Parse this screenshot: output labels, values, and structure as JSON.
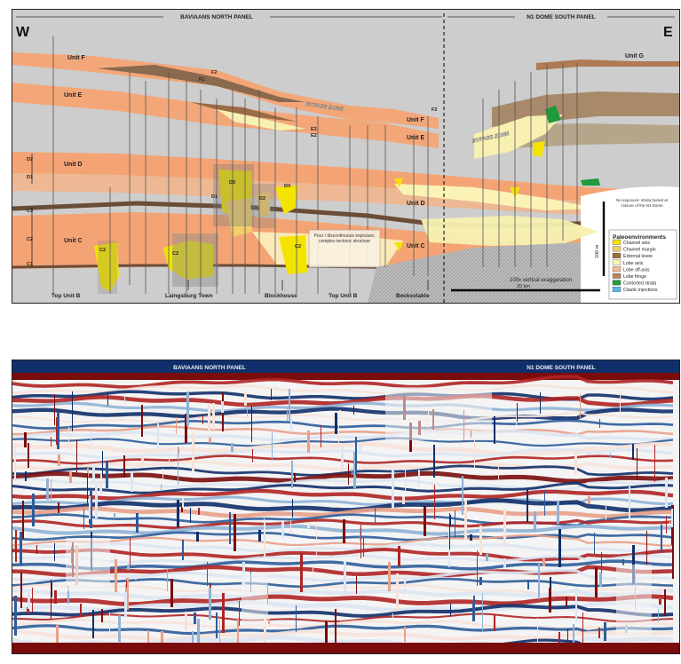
{
  "top_panel": {
    "panel_left_label": "BAVIAANS NORTH PANEL",
    "panel_right_label": "N1 DOME SOUTH PANEL",
    "west": "W",
    "east": "E",
    "units": {
      "unit_f_left": "Unit F",
      "unit_e_left": "Unit E",
      "unit_d_left": "Unit D",
      "unit_c_left": "Unit C",
      "unit_g": "Unit G",
      "unit_f_right": "Unit F",
      "unit_e_right": "Unit E",
      "unit_d_right": "Unit D",
      "unit_c_right": "Unit C"
    },
    "subunits": {
      "d2": "D2",
      "d1": "D1",
      "c3": "C3",
      "c2": "C2",
      "c1": "C1",
      "f2": "F2",
      "f1": "F1",
      "e3": "E3",
      "e2": "E2",
      "f2_right": "F2",
      "c2_body1": "C2",
      "c2_body2": "C2",
      "d1_body": "D1",
      "d3_body": "D3",
      "d2_body": "D2",
      "d3_body2": "D3",
      "c2_body3": "C2"
    },
    "bypass_left": "BYPASS ZONE",
    "bypass_right": "BYPASS ZONE",
    "poor_exposure_note": "Poor / discontinuous exposure; complex tectonic structure",
    "no_exposure_note": "No exposure: strata buried at closure of the N1 Dome",
    "exaggeration": "100x vertical exaggeration",
    "scale_horizontal": "20 km",
    "scale_vertical": "100 m",
    "bottom_labels": [
      "Top Unit B",
      "Laingsburg Town",
      "Blockhouse",
      "Top Unit B",
      "Becksvlakte"
    ],
    "legend": {
      "title": "Paleoenvironments",
      "items": [
        {
          "label": "Channel axis",
          "color": "#f3e400"
        },
        {
          "label": "Channel margin",
          "color": "#f2cf6a"
        },
        {
          "label": "External levee",
          "color": "#a06a3c"
        },
        {
          "label": "Lobe axis",
          "color": "#fbf3b6"
        },
        {
          "label": "Lobe off-axis",
          "color": "#f6ba8c"
        },
        {
          "label": "Lobe fringe",
          "color": "#b5845f"
        },
        {
          "label": "Contorted strata",
          "color": "#1f9a3c"
        },
        {
          "label": "Clastic injections",
          "color": "#5bb6e6"
        }
      ]
    }
  },
  "bottom_panel": {
    "left_label": "BAVIAANS NORTH PANEL",
    "right_label": "N1 DOME SOUTH PANEL"
  }
}
